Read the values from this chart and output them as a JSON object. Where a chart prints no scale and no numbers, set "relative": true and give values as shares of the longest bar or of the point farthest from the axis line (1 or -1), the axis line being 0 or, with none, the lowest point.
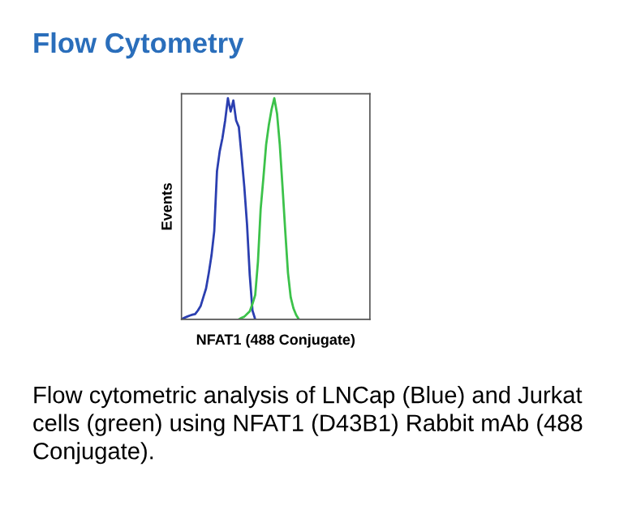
{
  "chart_data": {
    "type": "line",
    "title": "Flow Cytometry",
    "ylabel": "Events",
    "xlabel": "NFAT1 (488 Conjugate)",
    "relative": true,
    "grid": false,
    "legend": false,
    "marker": "none",
    "line_style": "solid",
    "annotations": [
      "Flow cytometric analysis of LNCap (Blue) and Jurkat cells (green) using NFAT1 (D43B1) Rabbit mAb (488 Conjugate)."
    ],
    "categories": [
      null,
      null,
      null,
      null,
      null,
      null,
      null,
      null,
      null,
      null,
      null,
      null,
      null,
      null,
      null,
      null,
      null,
      null,
      null,
      null,
      null,
      null,
      null,
      null,
      null,
      null,
      null,
      null,
      null,
      null,
      null,
      null,
      null,
      null,
      null,
      null,
      null,
      null,
      null,
      null,
      null,
      null,
      null,
      null,
      null,
      null,
      null,
      null,
      null,
      null,
      null,
      null,
      null,
      null,
      null,
      null,
      null,
      null,
      null,
      null,
      null,
      null,
      null,
      null,
      null,
      null,
      null,
      null,
      null,
      null
    ],
    "series": [
      {
        "color": "#2b3fb0",
        "values": [
          0,
          0.007,
          0.012,
          0.017,
          0.021,
          0.024,
          0.04,
          0.06,
          0.1,
          0.14,
          0.21,
          0.29,
          0.4,
          0.67,
          0.76,
          0.82,
          0.9,
          1,
          0.94,
          0.99,
          0.9,
          0.87,
          0.74,
          0.6,
          0.43,
          0.2,
          0.04,
          0,
          null,
          null,
          null,
          null,
          null,
          null,
          null,
          null,
          null,
          null,
          null,
          null,
          null,
          null,
          null,
          null,
          null,
          null,
          null,
          null,
          null,
          null,
          null,
          null,
          null,
          null,
          null,
          null,
          null,
          null,
          null,
          null,
          null,
          null,
          null,
          null,
          null,
          null,
          null,
          null,
          null,
          null
        ]
      },
      {
        "color": "#3cc24a",
        "values": [
          null,
          null,
          null,
          null,
          null,
          null,
          null,
          null,
          null,
          null,
          null,
          null,
          null,
          null,
          null,
          null,
          null,
          null,
          null,
          null,
          null,
          0,
          0.007,
          0.012,
          0.024,
          0.036,
          0.07,
          0.11,
          0.26,
          0.5,
          0.64,
          0.79,
          0.88,
          0.95,
          1,
          0.93,
          0.79,
          0.6,
          0.4,
          0.21,
          0.1,
          0.05,
          0.02,
          0,
          null,
          null,
          null,
          null,
          null,
          null,
          null,
          null,
          null,
          null,
          null,
          null,
          null,
          null,
          null,
          null,
          null,
          null,
          null,
          null,
          null,
          null,
          null,
          null,
          null,
          null
        ]
      }
    ]
  }
}
